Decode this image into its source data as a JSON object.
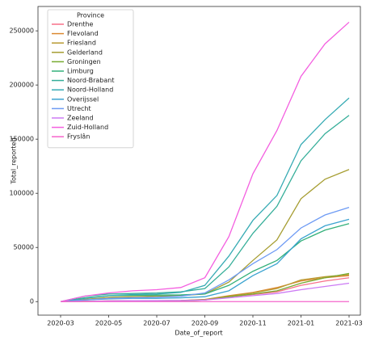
{
  "chart_data": {
    "type": "line",
    "x_label": "Date_of_report",
    "y_label": "Total_reported",
    "legend_title": "Province",
    "x": [
      "2020-03",
      "2020-04",
      "2020-05",
      "2020-06",
      "2020-07",
      "2020-08",
      "2020-09",
      "2020-10",
      "2020-11",
      "2020-12",
      "2021-01",
      "2021-02",
      "2021-03"
    ],
    "xlim": [
      "2020-03",
      "2021-03"
    ],
    "xticks": [
      "2020-03",
      "2020-05",
      "2020-07",
      "2020-09",
      "2020-11",
      "2021-01",
      "2021-03"
    ],
    "ylim": [
      -12500,
      272500
    ],
    "yticks": [
      0,
      50000,
      100000,
      150000,
      200000,
      250000
    ],
    "legend": "upper left",
    "series": [
      {
        "name": "Drenthe",
        "color": "#f77189",
        "values": [
          0,
          200,
          400,
          500,
          600,
          800,
          1500,
          4500,
          6500,
          9000,
          15000,
          19000,
          22000
        ]
      },
      {
        "name": "Flevoland",
        "color": "#dc8932",
        "values": [
          0,
          300,
          600,
          700,
          800,
          1000,
          2000,
          5500,
          8500,
          13000,
          19000,
          22000,
          24000
        ]
      },
      {
        "name": "Friesland",
        "color": "#b99a31",
        "values": [
          0,
          300,
          500,
          600,
          700,
          900,
          1800,
          5000,
          8000,
          12000,
          20000,
          23000,
          25000
        ]
      },
      {
        "name": "Gelderland",
        "color": "#a69d31",
        "values": [
          0,
          2000,
          4000,
          4500,
          5000,
          5500,
          7000,
          18000,
          38000,
          57000,
          95000,
          113000,
          122000
        ]
      },
      {
        "name": "Groningen",
        "color": "#77ab31",
        "values": [
          0,
          200,
          400,
          500,
          600,
          800,
          1500,
          4500,
          7000,
          10000,
          17000,
          22000,
          26000
        ]
      },
      {
        "name": "Limburg",
        "color": "#33b07a",
        "values": [
          0,
          3500,
          5500,
          5800,
          6000,
          6200,
          7000,
          15000,
          28000,
          38000,
          56000,
          66000,
          72000
        ]
      },
      {
        "name": "Noord-Brabant",
        "color": "#35ae99",
        "values": [
          0,
          5000,
          7000,
          7500,
          8000,
          9000,
          12000,
          32000,
          63000,
          88000,
          130000,
          155000,
          172000
        ]
      },
      {
        "name": "Noord-Holland",
        "color": "#37abb4",
        "values": [
          0,
          3000,
          5500,
          6500,
          7000,
          8500,
          15000,
          42000,
          75000,
          98000,
          145000,
          168000,
          188000
        ]
      },
      {
        "name": "Overijssel",
        "color": "#3ba3d0",
        "values": [
          0,
          1500,
          2500,
          3000,
          3000,
          3500,
          4500,
          10000,
          24000,
          35000,
          58000,
          70000,
          76000
        ]
      },
      {
        "name": "Utrecht",
        "color": "#6e9bf4",
        "values": [
          0,
          1500,
          3000,
          3500,
          4000,
          5000,
          8000,
          20000,
          35000,
          48000,
          68000,
          80000,
          87000
        ]
      },
      {
        "name": "Zeeland",
        "color": "#cc7af4",
        "values": [
          0,
          300,
          600,
          800,
          900,
          1000,
          1500,
          3500,
          5500,
          7500,
          11000,
          14000,
          17000
        ]
      },
      {
        "name": "Zuid-Holland",
        "color": "#f45fe0",
        "values": [
          0,
          5000,
          8000,
          10000,
          11000,
          13000,
          22000,
          60000,
          118000,
          158000,
          208000,
          238000,
          258000
        ]
      },
      {
        "name": "Fryslân",
        "color": "#f565cc",
        "values": [
          0,
          0,
          0,
          0,
          0,
          0,
          0,
          0,
          0,
          0,
          0,
          0,
          0
        ]
      }
    ]
  }
}
